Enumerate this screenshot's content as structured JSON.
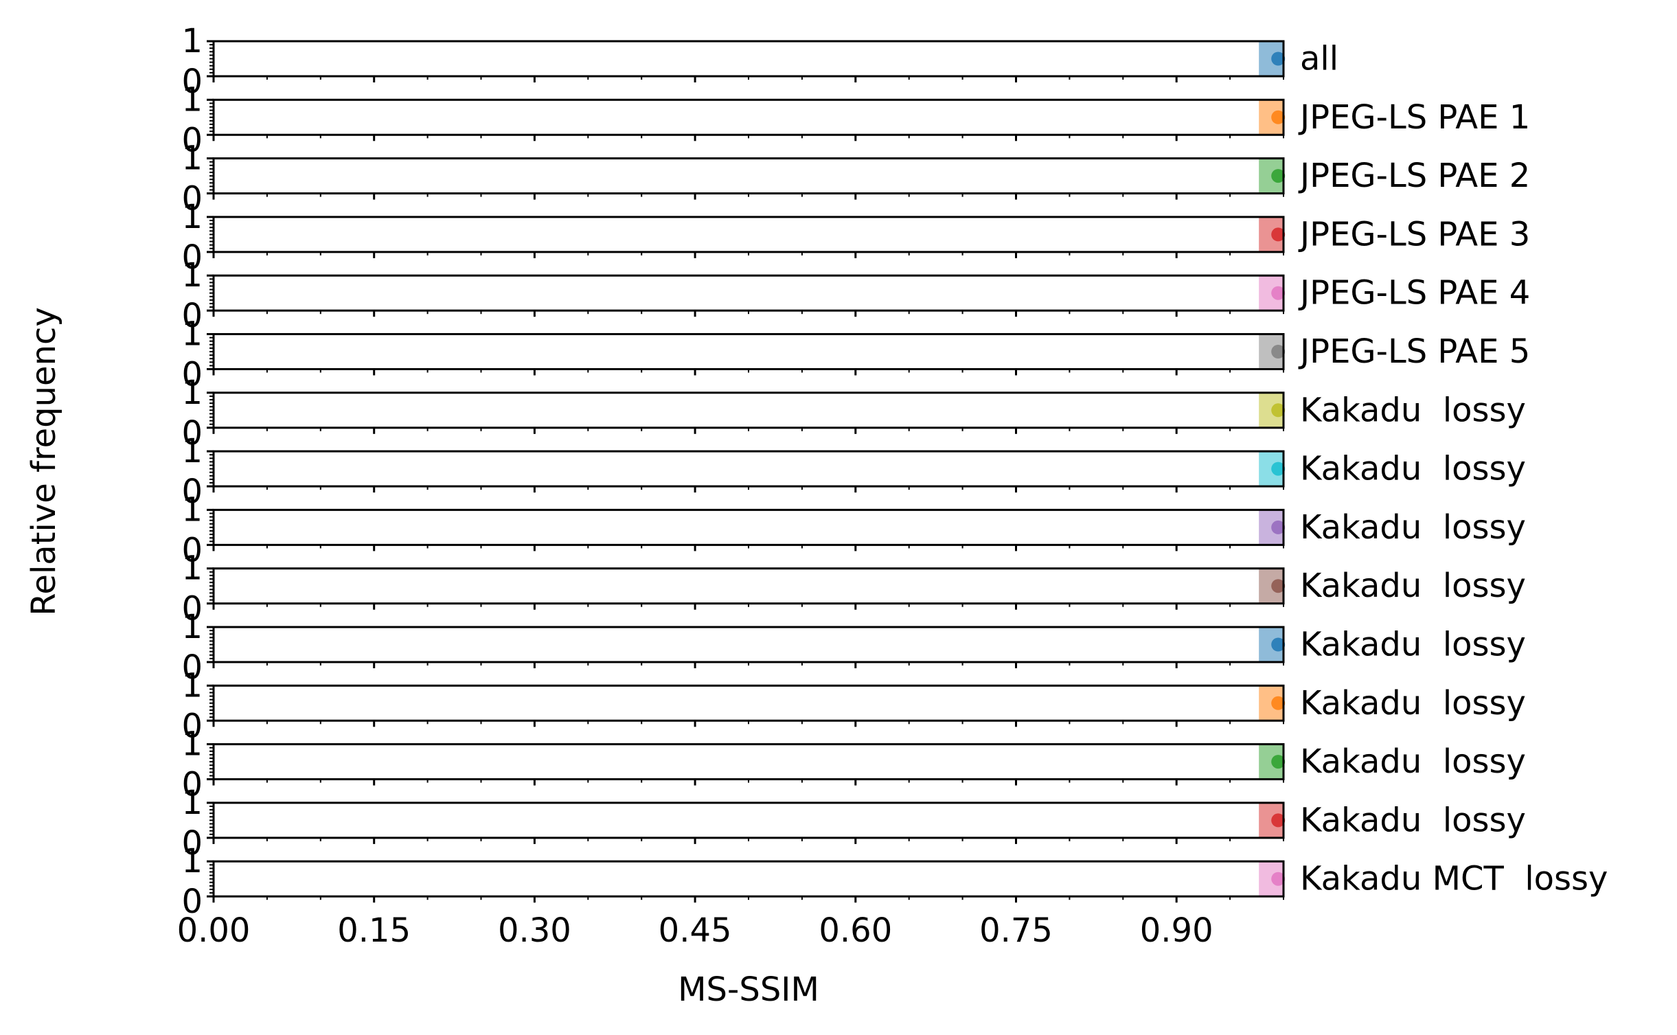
{
  "chart_data": {
    "type": "bar",
    "subtype": "stacked small-multiple histograms",
    "xlabel": "MS-SSIM",
    "ylabel": "Relative frequency",
    "xlim": [
      0.0,
      1.0
    ],
    "x_ticks": [
      "0.00",
      "0.15",
      "0.30",
      "0.45",
      "0.60",
      "0.75",
      "0.90"
    ],
    "y_ticks": [
      "0",
      "1"
    ],
    "ylim": [
      0,
      1
    ],
    "grid": false,
    "bin_range": [
      0.977,
      1.0
    ],
    "series": [
      {
        "name": "all",
        "color": "#1f77b4",
        "peak_x": 0.995,
        "frequency": 1.0
      },
      {
        "name": "JPEG-LS PAE 1",
        "color": "#ff7f0e",
        "peak_x": 0.995,
        "frequency": 1.0
      },
      {
        "name": "JPEG-LS PAE 2",
        "color": "#2ca02c",
        "peak_x": 0.995,
        "frequency": 1.0
      },
      {
        "name": "JPEG-LS PAE 3",
        "color": "#d62728",
        "peak_x": 0.995,
        "frequency": 1.0
      },
      {
        "name": "JPEG-LS PAE 4",
        "color": "#e377c2",
        "peak_x": 0.995,
        "frequency": 1.0
      },
      {
        "name": "JPEG-LS PAE 5",
        "color": "#7f7f7f",
        "peak_x": 0.995,
        "frequency": 1.0
      },
      {
        "name": "Kakadu  lossy",
        "color": "#bcbd22",
        "peak_x": 0.995,
        "frequency": 1.0
      },
      {
        "name": "Kakadu  lossy",
        "color": "#17becf",
        "peak_x": 0.995,
        "frequency": 1.0
      },
      {
        "name": "Kakadu  lossy",
        "color": "#9467bd",
        "peak_x": 0.995,
        "frequency": 1.0
      },
      {
        "name": "Kakadu  lossy",
        "color": "#8c564b",
        "peak_x": 0.995,
        "frequency": 1.0
      },
      {
        "name": "Kakadu  lossy",
        "color": "#1f77b4",
        "peak_x": 0.995,
        "frequency": 1.0
      },
      {
        "name": "Kakadu  lossy",
        "color": "#ff7f0e",
        "peak_x": 0.995,
        "frequency": 1.0
      },
      {
        "name": "Kakadu  lossy",
        "color": "#2ca02c",
        "peak_x": 0.995,
        "frequency": 1.0
      },
      {
        "name": "Kakadu  lossy",
        "color": "#d62728",
        "peak_x": 0.995,
        "frequency": 1.0
      },
      {
        "name": "Kakadu MCT  lossy",
        "color": "#e377c2",
        "peak_x": 0.995,
        "frequency": 1.0
      }
    ]
  }
}
